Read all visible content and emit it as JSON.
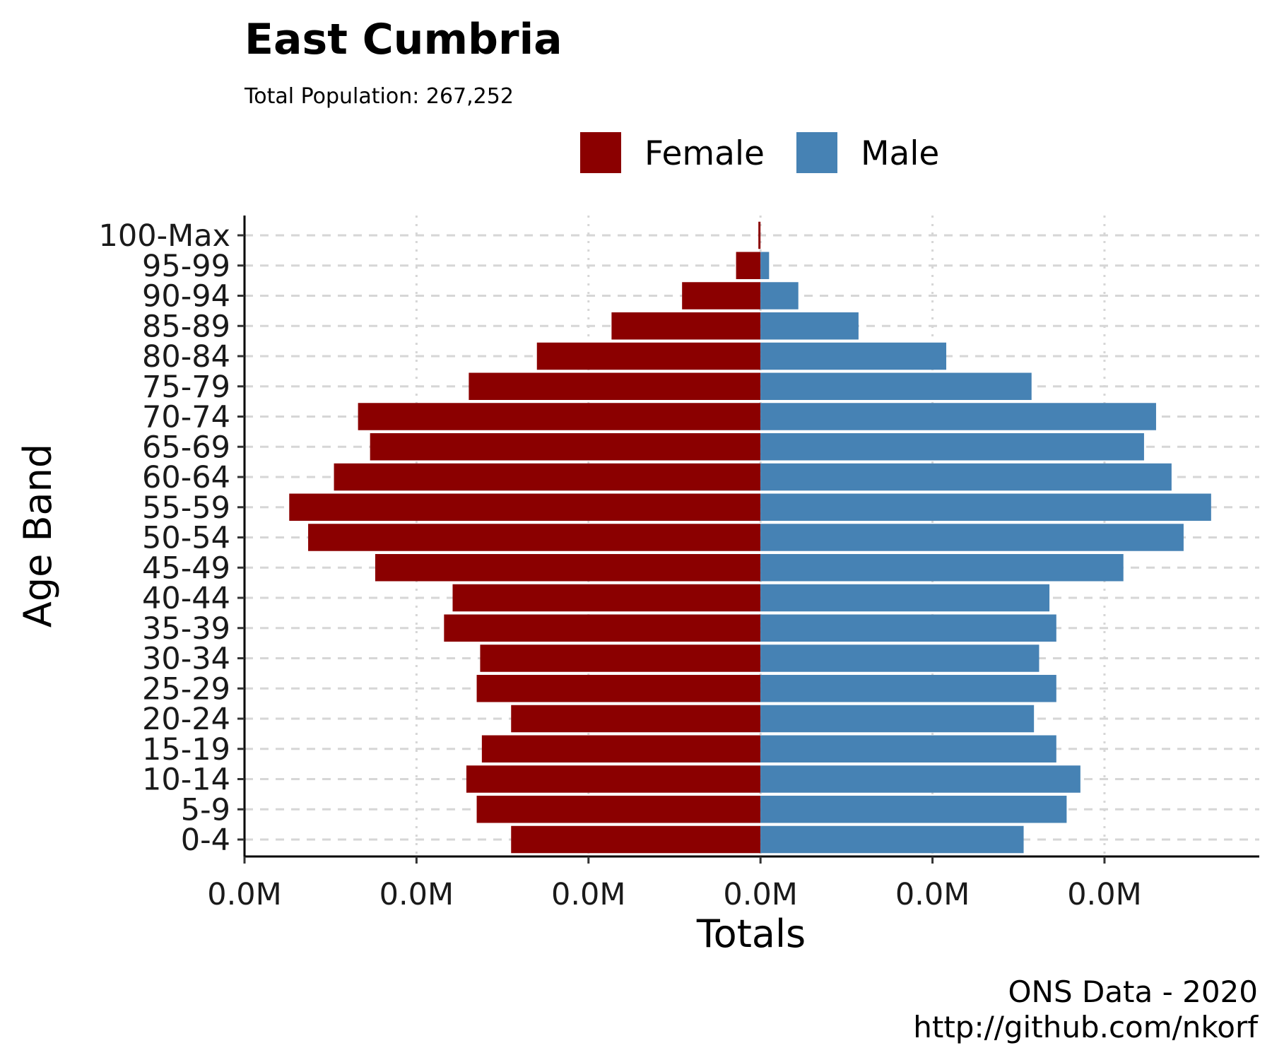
{
  "chart_data": {
    "type": "bar",
    "orientation": "horizontal",
    "layout": "population-pyramid",
    "title": "East Cumbria",
    "subtitle": "Total Population:  267,252",
    "xlabel": "Totals",
    "ylabel": "Age Band",
    "xlim": [
      -0.015,
      0.0145
    ],
    "x_tick_values": [
      -0.015,
      -0.01,
      -0.005,
      0.0,
      0.005,
      0.01
    ],
    "x_tick_labels": [
      "0.0M",
      "0.0M",
      "0.0M",
      "0.0M",
      "0.0M",
      "0.0M"
    ],
    "categories": [
      "0-4",
      "5-9",
      "10-14",
      "15-19",
      "20-24",
      "25-29",
      "30-34",
      "35-39",
      "40-44",
      "45-49",
      "50-54",
      "55-59",
      "60-64",
      "65-69",
      "70-74",
      "75-79",
      "80-84",
      "85-89",
      "90-94",
      "95-99",
      "100-Max"
    ],
    "series": [
      {
        "name": "Female",
        "color": "#8B0000",
        "values": [
          -0.00725,
          -0.00825,
          -0.00855,
          -0.0081,
          -0.00725,
          -0.00825,
          -0.00815,
          -0.0092,
          -0.00895,
          -0.0112,
          -0.01315,
          -0.0137,
          -0.0124,
          -0.01135,
          -0.0117,
          -0.00848,
          -0.0065,
          -0.00433,
          -0.00228,
          -0.00071,
          -6e-05
        ]
      },
      {
        "name": "Male",
        "color": "#4682B4",
        "values": [
          0.00765,
          0.0089,
          0.0093,
          0.0086,
          0.00795,
          0.0086,
          0.0081,
          0.0086,
          0.0084,
          0.01055,
          0.0123,
          0.0131,
          0.01195,
          0.01115,
          0.0115,
          0.00788,
          0.0054,
          0.00285,
          0.0011,
          0.00025,
          0.0
        ]
      }
    ],
    "legend_position": "top",
    "grid": {
      "x": "dotted",
      "y": "dashed"
    }
  },
  "legend": {
    "female": "Female",
    "male": "Male"
  },
  "caption": {
    "line1": "ONS Data - 2020",
    "line2": "http://github.com/nkorf"
  }
}
